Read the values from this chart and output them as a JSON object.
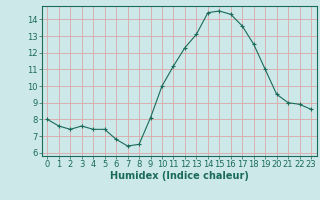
{
  "x": [
    0,
    1,
    2,
    3,
    4,
    5,
    6,
    7,
    8,
    9,
    10,
    11,
    12,
    13,
    14,
    15,
    16,
    17,
    18,
    19,
    20,
    21,
    22,
    23
  ],
  "y": [
    8.0,
    7.6,
    7.4,
    7.6,
    7.4,
    7.4,
    6.8,
    6.4,
    6.5,
    8.1,
    10.0,
    11.2,
    12.3,
    13.1,
    14.4,
    14.5,
    14.3,
    13.6,
    12.5,
    11.0,
    9.5,
    9.0,
    8.9,
    8.6
  ],
  "line_color": "#1a6b5a",
  "marker": "+",
  "marker_size": 3,
  "bg_color": "#cce8e8",
  "grid_color": "#dba8a8",
  "xlabel": "Humidex (Indice chaleur)",
  "xlim": [
    -0.5,
    23.5
  ],
  "ylim": [
    5.8,
    14.8
  ],
  "yticks": [
    6,
    7,
    8,
    9,
    10,
    11,
    12,
    13,
    14
  ],
  "xticks": [
    0,
    1,
    2,
    3,
    4,
    5,
    6,
    7,
    8,
    9,
    10,
    11,
    12,
    13,
    14,
    15,
    16,
    17,
    18,
    19,
    20,
    21,
    22,
    23
  ],
  "tick_color": "#1a6b5a",
  "label_color": "#1a6b5a",
  "font_size": 6,
  "xlabel_fontsize": 7
}
